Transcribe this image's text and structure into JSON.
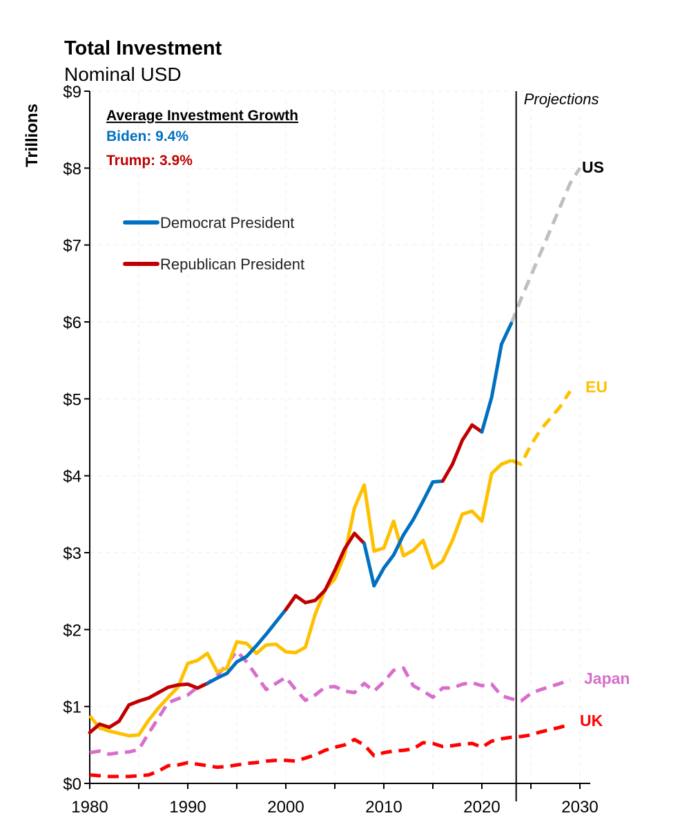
{
  "chart_data": {
    "type": "line",
    "title": "Total Investment",
    "subtitle": "Nominal USD",
    "ylabel": "Trillions",
    "xlabel": "",
    "xlim": [
      1980,
      2030
    ],
    "ylim": [
      0,
      9
    ],
    "x_ticks": [
      "1980",
      "1990",
      "2000",
      "2010",
      "2020",
      "2030"
    ],
    "y_ticks": [
      "$0",
      "$1",
      "$2",
      "$3",
      "$4",
      "$5",
      "$6",
      "$7",
      "$8",
      "$9"
    ],
    "grid": true,
    "projection_start": 2023.5,
    "projection_label": "Projections",
    "annotation": {
      "heading": "Average Investment Growth",
      "lines": [
        {
          "text": "Biden: 9.4%",
          "color": "#0070C0"
        },
        {
          "text": "Trump: 3.9%",
          "color": "#C00000"
        }
      ]
    },
    "legend": {
      "placement": "top-left",
      "items": [
        {
          "label": "Democrat President",
          "color": "#0070C0"
        },
        {
          "label": "Republican President",
          "color": "#C00000"
        }
      ]
    },
    "series": [
      {
        "name": "US",
        "color": "#000000",
        "party_colors": {
          "D": "#0070C0",
          "R": "#C00000"
        },
        "projection_color": "#BFBFBF",
        "x": [
          1980,
          1981,
          1982,
          1983,
          1984,
          1985,
          1986,
          1987,
          1988,
          1989,
          1990,
          1991,
          1992,
          1993,
          1994,
          1995,
          1996,
          1997,
          1998,
          1999,
          2000,
          2001,
          2002,
          2003,
          2004,
          2005,
          2006,
          2007,
          2008,
          2009,
          2010,
          2011,
          2012,
          2013,
          2014,
          2015,
          2016,
          2017,
          2018,
          2019,
          2020,
          2021,
          2022,
          2023
        ],
        "values": [
          0.66,
          0.77,
          0.73,
          0.81,
          1.02,
          1.07,
          1.11,
          1.18,
          1.25,
          1.28,
          1.29,
          1.24,
          1.3,
          1.37,
          1.43,
          1.58,
          1.65,
          1.79,
          1.94,
          2.1,
          2.26,
          2.44,
          2.35,
          2.38,
          2.51,
          2.77,
          3.05,
          3.25,
          3.12,
          2.57,
          2.8,
          2.97,
          3.23,
          3.43,
          3.67,
          3.92,
          3.93,
          4.15,
          4.46,
          4.66,
          4.57,
          5.02,
          5.71,
          5.98
        ],
        "party": [
          "R",
          "R",
          "R",
          "R",
          "R",
          "R",
          "R",
          "R",
          "R",
          "R",
          "R",
          "R",
          "R",
          "D",
          "D",
          "D",
          "D",
          "D",
          "D",
          "D",
          "D",
          "R",
          "R",
          "R",
          "R",
          "R",
          "R",
          "R",
          "R",
          "D",
          "D",
          "D",
          "D",
          "D",
          "D",
          "D",
          "D",
          "R",
          "R",
          "R",
          "R",
          "D",
          "D",
          "D"
        ],
        "projection_x": [
          2023,
          2024,
          2025,
          2026,
          2027,
          2028,
          2029,
          2030
        ],
        "projection_values": [
          5.98,
          6.3,
          6.6,
          6.9,
          7.2,
          7.5,
          7.8,
          8.0
        ]
      },
      {
        "name": "EU",
        "color": "#FFC000",
        "x": [
          1980,
          1981,
          1982,
          1983,
          1984,
          1985,
          1986,
          1987,
          1988,
          1989,
          1990,
          1991,
          1992,
          1993,
          1994,
          1995,
          1996,
          1997,
          1998,
          1999,
          2000,
          2001,
          2002,
          2003,
          2004,
          2005,
          2006,
          2007,
          2008,
          2009,
          2010,
          2011,
          2012,
          2013,
          2014,
          2015,
          2016,
          2017,
          2018,
          2019,
          2020,
          2021,
          2022,
          2023
        ],
        "values": [
          0.88,
          0.72,
          0.68,
          0.65,
          0.62,
          0.63,
          0.82,
          0.98,
          1.12,
          1.25,
          1.56,
          1.6,
          1.69,
          1.45,
          1.5,
          1.84,
          1.82,
          1.69,
          1.8,
          1.81,
          1.71,
          1.7,
          1.77,
          2.2,
          2.52,
          2.66,
          2.97,
          3.58,
          3.88,
          3.02,
          3.06,
          3.41,
          2.96,
          3.03,
          3.16,
          2.8,
          2.89,
          3.16,
          3.5,
          3.54,
          3.41,
          4.03,
          4.15,
          4.2
        ],
        "projection_x": [
          2023,
          2024,
          2025,
          2026,
          2027,
          2028,
          2029
        ],
        "projection_values": [
          4.2,
          4.15,
          4.4,
          4.6,
          4.75,
          4.9,
          5.1
        ]
      },
      {
        "name": "Japan",
        "color": "#D86ECC",
        "dashed": true,
        "x": [
          1980,
          1981,
          1982,
          1983,
          1984,
          1985,
          1986,
          1987,
          1988,
          1989,
          1990,
          1991,
          1992,
          1993,
          1994,
          1995,
          1996,
          1997,
          1998,
          1999,
          2000,
          2001,
          2002,
          2003,
          2004,
          2005,
          2006,
          2007,
          2008,
          2009,
          2010,
          2011,
          2012,
          2013,
          2014,
          2015,
          2016,
          2017,
          2018,
          2019,
          2020,
          2021,
          2022,
          2023,
          2024,
          2025,
          2026,
          2027,
          2028,
          2029
        ],
        "values": [
          0.4,
          0.42,
          0.38,
          0.4,
          0.41,
          0.44,
          0.65,
          0.85,
          1.05,
          1.1,
          1.15,
          1.25,
          1.3,
          1.4,
          1.55,
          1.72,
          1.58,
          1.4,
          1.22,
          1.3,
          1.38,
          1.22,
          1.08,
          1.15,
          1.25,
          1.26,
          1.2,
          1.18,
          1.3,
          1.2,
          1.32,
          1.47,
          1.5,
          1.27,
          1.2,
          1.12,
          1.24,
          1.24,
          1.29,
          1.31,
          1.27,
          1.29,
          1.14,
          1.1,
          1.07,
          1.17,
          1.22,
          1.26,
          1.3,
          1.35
        ]
      },
      {
        "name": "UK",
        "color": "#FF0000",
        "dashed": true,
        "x": [
          1980,
          1981,
          1982,
          1983,
          1984,
          1985,
          1986,
          1987,
          1988,
          1989,
          1990,
          1991,
          1992,
          1993,
          1994,
          1995,
          1996,
          1997,
          1998,
          1999,
          2000,
          2001,
          2002,
          2003,
          2004,
          2005,
          2006,
          2007,
          2008,
          2009,
          2010,
          2011,
          2012,
          2013,
          2014,
          2015,
          2016,
          2017,
          2018,
          2019,
          2020,
          2021,
          2022,
          2023,
          2024,
          2025,
          2026,
          2027,
          2028,
          2029
        ],
        "values": [
          0.11,
          0.1,
          0.09,
          0.09,
          0.09,
          0.1,
          0.11,
          0.16,
          0.23,
          0.24,
          0.27,
          0.25,
          0.23,
          0.21,
          0.22,
          0.24,
          0.26,
          0.27,
          0.29,
          0.3,
          0.3,
          0.29,
          0.33,
          0.37,
          0.43,
          0.47,
          0.5,
          0.57,
          0.5,
          0.36,
          0.4,
          0.42,
          0.43,
          0.45,
          0.53,
          0.52,
          0.48,
          0.49,
          0.51,
          0.52,
          0.47,
          0.55,
          0.58,
          0.6,
          0.61,
          0.63,
          0.67,
          0.7,
          0.73,
          0.77
        ]
      }
    ]
  }
}
